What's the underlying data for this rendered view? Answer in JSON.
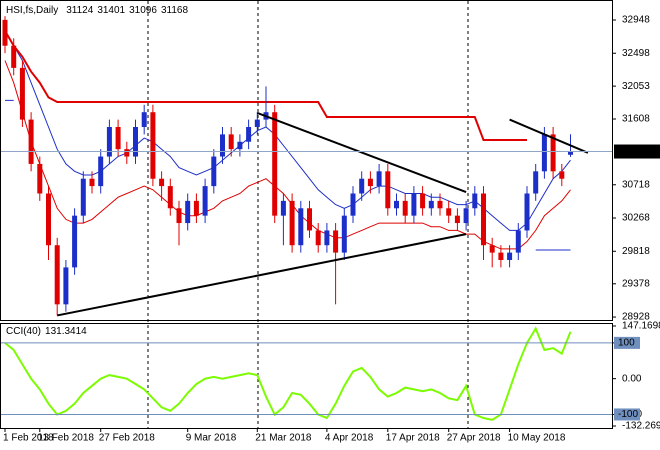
{
  "chart_data": {
    "type": "candlestick",
    "title": "HSI,fs,Daily",
    "categories": [
      "1 Feb 2018",
      null,
      null,
      null,
      "13 Feb 2018",
      null,
      null,
      null,
      null,
      null,
      null,
      "27 Feb 2018",
      null,
      null,
      null,
      null,
      null,
      null,
      null,
      null,
      null,
      "9 Mar 2018",
      null,
      null,
      null,
      null,
      null,
      null,
      null,
      "21 Mar 2018",
      null,
      null,
      null,
      null,
      null,
      null,
      null,
      "4 Apr 2018",
      null,
      null,
      null,
      null,
      null,
      null,
      "17 Apr 2018",
      null,
      null,
      null,
      null,
      null,
      null,
      "27 Apr 2018",
      null,
      null,
      null,
      null,
      null,
      null,
      "10 May 2018",
      null,
      null,
      null,
      null,
      null,
      null,
      null
    ],
    "open": [
      32950,
      32600,
      32300,
      31600,
      31000,
      30600,
      29900,
      29100,
      29600,
      30300,
      30800,
      30700,
      31100,
      31500,
      31200,
      31100,
      31500,
      31700,
      30800,
      30700,
      30400,
      30200,
      30500,
      30300,
      30700,
      31100,
      31400,
      31200,
      31300,
      31500,
      31600,
      31700,
      30300,
      30500,
      29900,
      30400,
      30100,
      29900,
      30100,
      29800,
      30300,
      30600,
      30800,
      30700,
      30900,
      30400,
      30500,
      30300,
      30600,
      30400,
      30500,
      30400,
      30300,
      30200,
      30400,
      30600,
      29900,
      29800,
      29700,
      29800,
      30100,
      30600,
      30900,
      31400,
      30900,
      31124
    ],
    "high": [
      33000,
      32700,
      32400,
      31700,
      31100,
      30700,
      30000,
      29700,
      30400,
      30900,
      30900,
      31200,
      31600,
      31600,
      31300,
      31600,
      31800,
      31800,
      30900,
      30800,
      30500,
      30600,
      30600,
      30800,
      31200,
      31500,
      31500,
      31400,
      31600,
      31700,
      32050,
      31800,
      30600,
      30600,
      30500,
      30500,
      30200,
      30200,
      30200,
      30400,
      30700,
      30900,
      30900,
      31000,
      31000,
      30600,
      30600,
      30700,
      30700,
      30600,
      30600,
      30500,
      30400,
      30500,
      30700,
      30700,
      30000,
      29900,
      29900,
      30200,
      30700,
      31000,
      31500,
      31500,
      31000,
      31401
    ],
    "low": [
      32500,
      32200,
      31500,
      30900,
      30500,
      29700,
      28950,
      29000,
      29500,
      30200,
      30600,
      30600,
      31000,
      31100,
      31000,
      31000,
      31400,
      30700,
      30500,
      30300,
      29900,
      30100,
      30200,
      30200,
      30600,
      31000,
      31100,
      31100,
      31200,
      31400,
      31500,
      30200,
      29900,
      29800,
      29800,
      30000,
      29800,
      29800,
      29100,
      29700,
      30200,
      30500,
      30600,
      30600,
      30300,
      30300,
      30200,
      30200,
      30300,
      30300,
      30300,
      30200,
      30100,
      30100,
      30300,
      29700,
      29600,
      29600,
      29600,
      29700,
      30000,
      30500,
      30800,
      30800,
      30700,
      31096
    ],
    "close": [
      32600,
      32300,
      31600,
      31000,
      30600,
      29900,
      29100,
      29600,
      30300,
      30800,
      30700,
      31100,
      31500,
      31200,
      31100,
      31500,
      31700,
      30800,
      30700,
      30400,
      30200,
      30500,
      30300,
      30700,
      31100,
      31400,
      31200,
      31300,
      31500,
      31600,
      31700,
      30300,
      30500,
      29900,
      30400,
      30100,
      29900,
      30100,
      29800,
      30300,
      30600,
      30800,
      30700,
      30900,
      30400,
      30500,
      30300,
      30600,
      30400,
      30500,
      30400,
      30300,
      30200,
      30400,
      30600,
      29900,
      29800,
      29700,
      29800,
      30100,
      30600,
      30900,
      31400,
      30900,
      30800,
      31168
    ],
    "up_color": "#1c2fc8",
    "down_color": "#e00000",
    "ylim": [
      28888,
      33205
    ],
    "yticks": [
      32948,
      32498,
      32053,
      31608,
      30718,
      30268,
      29818,
      29378,
      28928
    ],
    "lines": [
      {
        "color": "#1c2fc8",
        "values": [
          32800,
          32600,
          32400,
          32100,
          31800,
          31500,
          31200,
          31000,
          30900,
          30850,
          30850,
          30900,
          31000,
          31100,
          31150,
          31250,
          31350,
          31300,
          31200,
          31100,
          30950,
          30900,
          30850,
          30900,
          30950,
          31050,
          31150,
          31250,
          31350,
          31450,
          31500,
          31400,
          31250,
          31100,
          30950,
          30800,
          30650,
          30550,
          30450,
          30400,
          30450,
          30550,
          30650,
          30700,
          30700,
          30650,
          30600,
          30600,
          30600,
          30550,
          30550,
          30500,
          30450,
          30450,
          30500,
          30400,
          30300,
          30200,
          30100,
          30100,
          30200,
          30400,
          30600,
          30800,
          30900,
          31050
        ]
      },
      {
        "color": "#e00000",
        "values": [
          32400,
          32100,
          31700,
          31300,
          31000,
          30700,
          30400,
          30250,
          30200,
          30200,
          30250,
          30350,
          30450,
          30550,
          30600,
          30650,
          30700,
          30650,
          30550,
          30450,
          30350,
          30300,
          30300,
          30350,
          30400,
          30500,
          30550,
          30600,
          30700,
          30750,
          30800,
          30700,
          30600,
          30450,
          30300,
          30200,
          30100,
          30050,
          30000,
          30000,
          30050,
          30100,
          30150,
          30200,
          30200,
          30200,
          30200,
          30200,
          30200,
          30150,
          30150,
          30100,
          30100,
          30050,
          30050,
          29950,
          29900,
          29850,
          29850,
          29850,
          29950,
          30100,
          30300,
          30400,
          30500,
          30650
        ]
      },
      {
        "color": "#e00000",
        "values": [
          32800,
          32600,
          32450,
          32250,
          32100,
          31900,
          31838,
          31838,
          31838,
          31838,
          31838,
          31838,
          31838,
          31838,
          31838,
          31838,
          31838,
          31838,
          31838,
          31838,
          31838,
          31838,
          31838,
          31838,
          31838,
          31838,
          31838,
          31838,
          31838,
          31838,
          31838,
          31838,
          31838,
          31838,
          31838,
          31838,
          31838,
          31635,
          31635,
          31635,
          31635,
          31635,
          31635,
          31635,
          31635,
          31635,
          31635,
          31635,
          31635,
          31635,
          31635,
          31635,
          31635,
          31635,
          31635,
          31324,
          31324,
          31324,
          31324,
          31324,
          31324,
          null,
          null,
          null,
          null,
          null
        ]
      },
      {
        "color": "#1c2fc8",
        "values": [
          31860,
          31860,
          null,
          null,
          null,
          null,
          null,
          null,
          null,
          null,
          null,
          null,
          null,
          null,
          null,
          null,
          null,
          null,
          null,
          null,
          null,
          null,
          null,
          null,
          null,
          null,
          null,
          null,
          null,
          null,
          null,
          null,
          null,
          null,
          null,
          null,
          null,
          null,
          null,
          null,
          null,
          null,
          null,
          null,
          null,
          null,
          null,
          null,
          null,
          null,
          null,
          null,
          null,
          null,
          null,
          null,
          null,
          null,
          null,
          null,
          null,
          29835,
          29835,
          29835,
          29835,
          29835
        ]
      }
    ],
    "trendlines": [
      {
        "x": [
          6,
          53
        ],
        "y": [
          28950,
          30050
        ]
      },
      {
        "x": [
          29,
          53
        ],
        "y": [
          31690,
          30620
        ]
      },
      {
        "x": [
          58,
          67
        ],
        "y": [
          31600,
          31150
        ]
      }
    ],
    "indicator": {
      "type": "line",
      "title": "CCI(40)",
      "color": "#7cfc00",
      "values": [
        100,
        80,
        40,
        0,
        -30,
        -70,
        -100,
        -90,
        -70,
        -40,
        -20,
        0,
        10,
        5,
        0,
        -15,
        -30,
        -55,
        -80,
        -90,
        -70,
        -40,
        -15,
        0,
        5,
        0,
        5,
        10,
        15,
        10,
        -50,
        -100,
        -80,
        -40,
        -45,
        -70,
        -100,
        -110,
        -70,
        -20,
        20,
        30,
        5,
        -30,
        -50,
        -40,
        -25,
        -30,
        -35,
        -30,
        -40,
        -55,
        -60,
        -20,
        -100,
        -110,
        -115,
        -100,
        -30,
        40,
        100,
        140,
        80,
        85,
        70,
        131.3414
      ],
      "ylim": [
        -132.269,
        147.1698
      ],
      "yticks": [
        147.1698,
        100,
        {
          "value": 0,
          "label": "0.00"
        },
        -100,
        -132.269
      ],
      "levels": [
        100,
        -100
      ]
    }
  }
}
